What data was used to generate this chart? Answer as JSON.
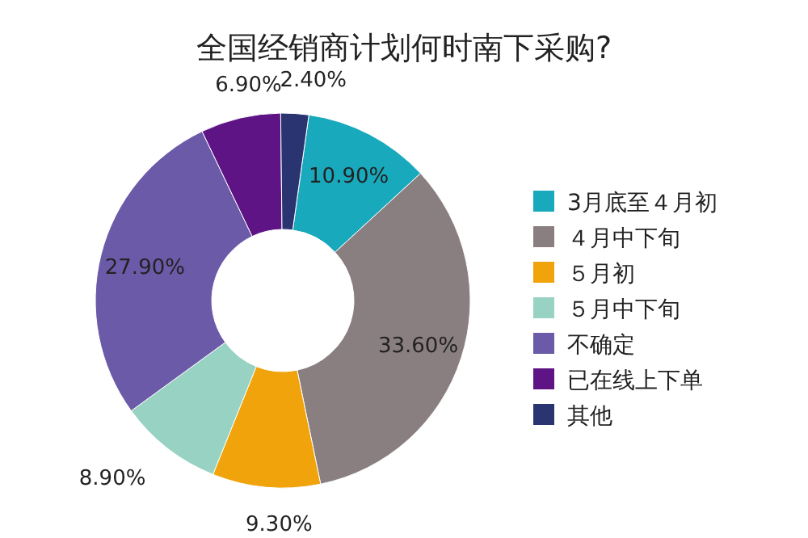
{
  "chart_data": {
    "type": "donut",
    "title": "全国经销商计划何时南下采购?",
    "categories": [
      "3月底至４月初",
      "４月中下旬",
      "５月初",
      "５月中下旬",
      "不确定",
      "已在线上下单",
      "其他"
    ],
    "values": [
      10.9,
      33.6,
      9.3,
      8.9,
      27.9,
      6.9,
      2.4
    ],
    "value_labels": [
      "10.90%",
      "33.60%",
      "9.30%",
      "8.90%",
      "27.90%",
      "6.90%",
      "2.40%"
    ],
    "colors": [
      "#19a9bd",
      "#8a7f80",
      "#f0a30a",
      "#97d2c2",
      "#6a5aa8",
      "#5e1485",
      "#2a3470"
    ],
    "legend": "right"
  }
}
